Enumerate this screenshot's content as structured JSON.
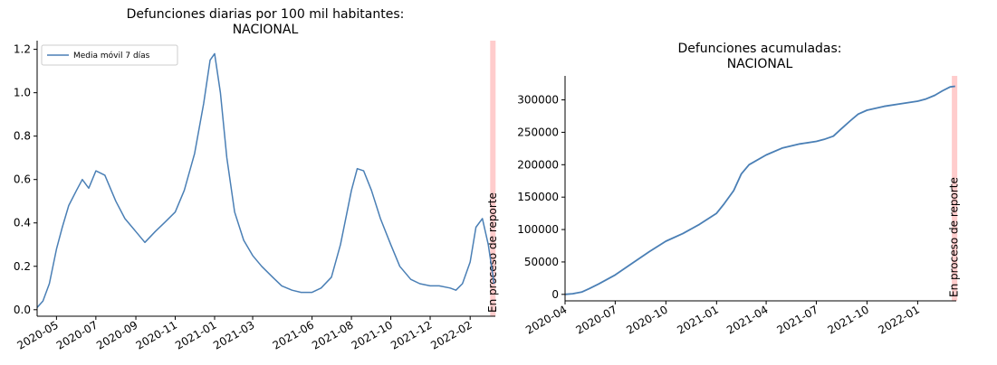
{
  "chart_data": [
    {
      "type": "line",
      "title": "Defunciones diarias por 100 mil habitantes:",
      "subtitle": "NACIONAL",
      "xlabel": "",
      "ylabel": "",
      "ylim": [
        -0.03,
        1.24
      ],
      "yticks": [
        0.0,
        0.2,
        0.4,
        0.6,
        0.8,
        1.0,
        1.2
      ],
      "ytick_labels": [
        "0.0",
        "0.2",
        "0.4",
        "0.6",
        "0.8",
        "1.0",
        "1.2"
      ],
      "xlim": [
        "2020-04-01",
        "2022-03-12"
      ],
      "xticks": [
        "2020-05-01",
        "2020-07-01",
        "2020-09-01",
        "2020-11-01",
        "2021-01-01",
        "2021-03-01",
        "2021-06-01",
        "2021-08-01",
        "2021-10-01",
        "2021-12-01",
        "2022-02-01"
      ],
      "xtick_labels": [
        "2020-05",
        "2020-07",
        "2020-09",
        "2020-11",
        "2021-01",
        "2021-03",
        "2021-06",
        "2021-08",
        "2021-10",
        "2021-12",
        "2022-02"
      ],
      "legend": {
        "position": "upper-left",
        "entries": [
          "Media móvil 7 días"
        ]
      },
      "band_label": "En proceso de reporte",
      "band_range": [
        "2022-03-04",
        "2022-03-12"
      ],
      "color": "#4a7fb5",
      "band_color": "#ffcccc",
      "grid": false,
      "series": [
        {
          "name": "Media móvil 7 días",
          "x": [
            "2020-04-01",
            "2020-04-10",
            "2020-04-20",
            "2020-05-01",
            "2020-05-10",
            "2020-05-20",
            "2020-06-01",
            "2020-06-10",
            "2020-06-20",
            "2020-07-01",
            "2020-07-15",
            "2020-08-01",
            "2020-08-15",
            "2020-09-01",
            "2020-09-15",
            "2020-10-01",
            "2020-10-15",
            "2020-11-01",
            "2020-11-15",
            "2020-12-01",
            "2020-12-15",
            "2020-12-25",
            "2021-01-01",
            "2021-01-10",
            "2021-01-20",
            "2021-02-01",
            "2021-02-15",
            "2021-03-01",
            "2021-03-15",
            "2021-04-01",
            "2021-04-15",
            "2021-05-01",
            "2021-05-15",
            "2021-06-01",
            "2021-06-15",
            "2021-07-01",
            "2021-07-15",
            "2021-08-01",
            "2021-08-10",
            "2021-08-20",
            "2021-09-01",
            "2021-09-15",
            "2021-10-01",
            "2021-10-15",
            "2021-11-01",
            "2021-11-15",
            "2021-12-01",
            "2021-12-15",
            "2022-01-01",
            "2022-01-10",
            "2022-01-20",
            "2022-02-01",
            "2022-02-10",
            "2022-02-20",
            "2022-03-01",
            "2022-03-10"
          ],
          "y": [
            0.01,
            0.04,
            0.12,
            0.28,
            0.38,
            0.48,
            0.55,
            0.6,
            0.56,
            0.64,
            0.62,
            0.5,
            0.42,
            0.36,
            0.31,
            0.36,
            0.4,
            0.45,
            0.55,
            0.72,
            0.95,
            1.15,
            1.18,
            1.0,
            0.7,
            0.45,
            0.32,
            0.25,
            0.2,
            0.15,
            0.11,
            0.09,
            0.08,
            0.08,
            0.1,
            0.15,
            0.3,
            0.55,
            0.65,
            0.64,
            0.55,
            0.42,
            0.3,
            0.2,
            0.14,
            0.12,
            0.11,
            0.11,
            0.1,
            0.09,
            0.12,
            0.22,
            0.38,
            0.42,
            0.3,
            0.12
          ]
        }
      ]
    },
    {
      "type": "line",
      "title": "Defunciones acumuladas:",
      "subtitle": "NACIONAL",
      "xlabel": "",
      "ylabel": "",
      "ylim": [
        -10000,
        337000
      ],
      "yticks": [
        0,
        50000,
        100000,
        150000,
        200000,
        250000,
        300000
      ],
      "ytick_labels": [
        "0",
        "50000",
        "100000",
        "150000",
        "200000",
        "250000",
        "300000"
      ],
      "xlim": [
        "2020-04-01",
        "2022-03-12"
      ],
      "xticks": [
        "2020-04-01",
        "2020-07-01",
        "2020-10-01",
        "2021-01-01",
        "2021-04-01",
        "2021-07-01",
        "2021-10-01",
        "2022-01-01"
      ],
      "xtick_labels": [
        "2020-04",
        "2020-07",
        "2020-10",
        "2021-01",
        "2021-04",
        "2021-07",
        "2021-10",
        "2022-01"
      ],
      "band_label": "En proceso de reporte",
      "band_range": [
        "2022-03-04",
        "2022-03-12"
      ],
      "color": "#4a7fb5",
      "band_color": "#ffcccc",
      "grid": false,
      "series": [
        {
          "x": [
            "2020-04-01",
            "2020-04-15",
            "2020-05-01",
            "2020-05-15",
            "2020-06-01",
            "2020-07-01",
            "2020-08-01",
            "2020-09-01",
            "2020-10-01",
            "2020-11-01",
            "2020-12-01",
            "2021-01-01",
            "2021-01-15",
            "2021-02-01",
            "2021-02-15",
            "2021-03-01",
            "2021-04-01",
            "2021-05-01",
            "2021-06-01",
            "2021-07-01",
            "2021-07-15",
            "2021-08-01",
            "2021-08-15",
            "2021-09-01",
            "2021-09-15",
            "2021-10-01",
            "2021-11-01",
            "2021-12-01",
            "2022-01-01",
            "2022-01-15",
            "2022-02-01",
            "2022-02-15",
            "2022-03-01",
            "2022-03-10"
          ],
          "y": [
            0,
            1000,
            3500,
            9000,
            16000,
            30000,
            48000,
            66000,
            82000,
            94000,
            108000,
            125000,
            140000,
            160000,
            186000,
            200000,
            215000,
            226000,
            232000,
            236000,
            239000,
            244000,
            255000,
            268000,
            278000,
            284000,
            290000,
            294000,
            298000,
            301000,
            307000,
            314000,
            320000,
            321000
          ]
        }
      ]
    }
  ]
}
